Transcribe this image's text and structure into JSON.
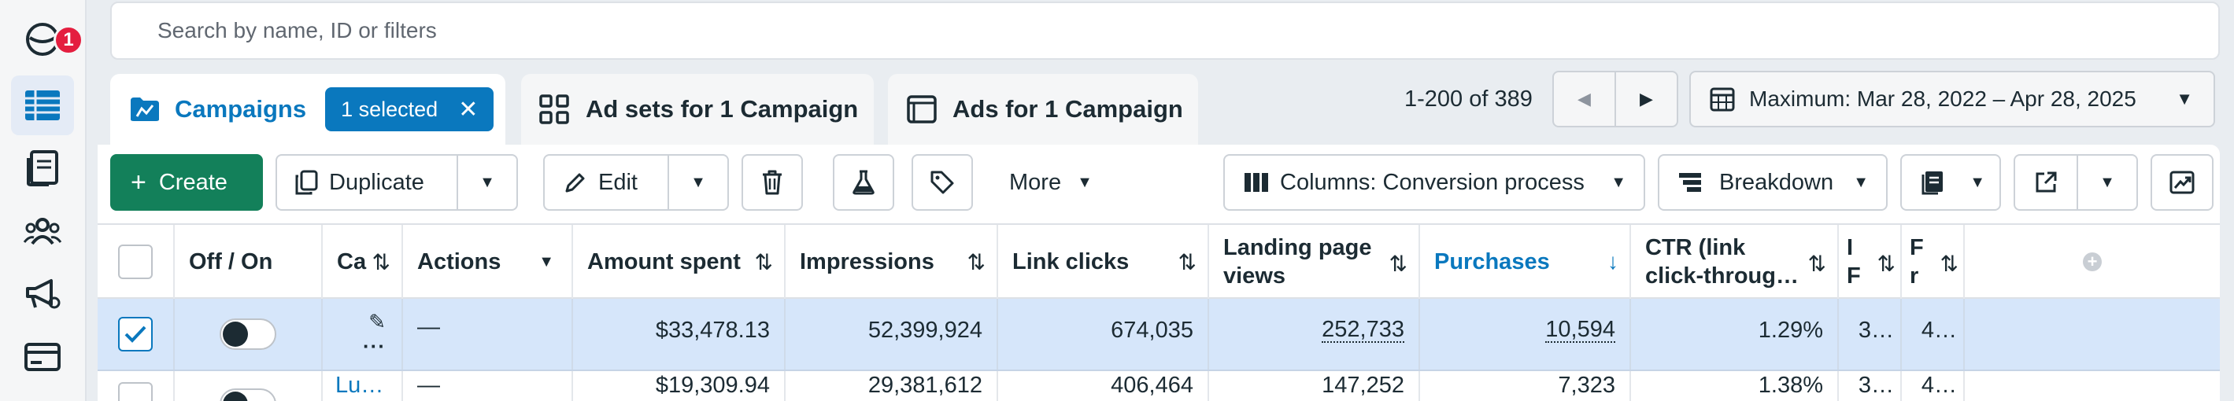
{
  "rail": {
    "notification_count": "1",
    "items": [
      "account-overview-icon",
      "campaigns-table-icon",
      "reports-icon",
      "audiences-icon",
      "advertising-icon",
      "billing-icon"
    ]
  },
  "search": {
    "placeholder": "Search by name, ID or filters"
  },
  "tabs": {
    "campaigns": "Campaigns",
    "selected_chip": "1 selected",
    "adsets": "Ad sets for 1 Campaign",
    "ads": "Ads for 1 Campaign"
  },
  "pagination": {
    "range_text": "1-200 of 389"
  },
  "date_range": {
    "label": "Maximum: Mar 28, 2022 – Apr 28, 2025"
  },
  "toolbar": {
    "create": "Create",
    "duplicate": "Duplicate",
    "edit": "Edit",
    "more": "More",
    "columns": "Columns: Conversion process",
    "breakdown": "Breakdown"
  },
  "table": {
    "headers": {
      "off_on": "Off / On",
      "campaign": "Ca",
      "actions": "Actions",
      "amount_spent": "Amount spent",
      "impressions": "Impressions",
      "link_clicks": "Link clicks",
      "landing_page_views_1": "Landing page",
      "landing_page_views_2": "views",
      "purchases": "Purchases",
      "ctr_1": "CTR (link",
      "ctr_2": "click-throug…",
      "col_a": "I",
      "col_a2": "F",
      "col_b": "F",
      "col_b2": "r"
    },
    "rows": [
      {
        "selected": true,
        "campaign": "",
        "actions": "—",
        "amount_spent": "$33,478.13",
        "impressions": "52,399,924",
        "link_clicks": "674,035",
        "landing_page_views": "252,733",
        "purchases": "10,594",
        "ctr": "1.29%",
        "col_a": "3…",
        "col_b": "4…"
      },
      {
        "selected": false,
        "campaign": "Lu…",
        "actions": "—",
        "amount_spent": "$19,309.94",
        "impressions": "29,381,612",
        "link_clicks": "406,464",
        "landing_page_views": "147,252",
        "purchases": "7,323",
        "ctr": "1.38%",
        "col_a": "3…",
        "col_b": "4…"
      }
    ]
  },
  "colors": {
    "accent_blue": "#0a78be",
    "create_green": "#13805a",
    "selected_row": "#d6e6fa",
    "badge_red": "#e41e3f"
  }
}
